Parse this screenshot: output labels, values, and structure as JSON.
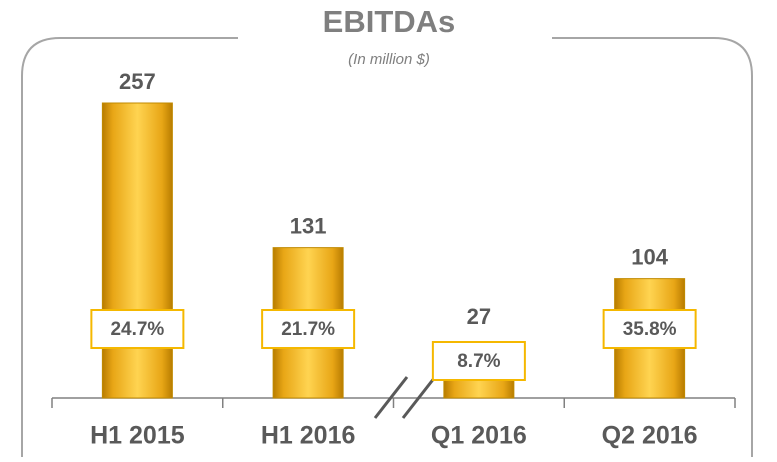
{
  "chart_data": {
    "type": "bar",
    "title": "EBITDAs",
    "subtitle": "(In million $)",
    "categories": [
      "H1 2015",
      "H1 2016",
      "Q1 2016",
      "Q2 2016"
    ],
    "values": [
      257,
      131,
      27,
      104
    ],
    "annotations": [
      "24.7%",
      "21.7%",
      "8.7%",
      "35.8%"
    ],
    "color": "#f0b21c"
  }
}
